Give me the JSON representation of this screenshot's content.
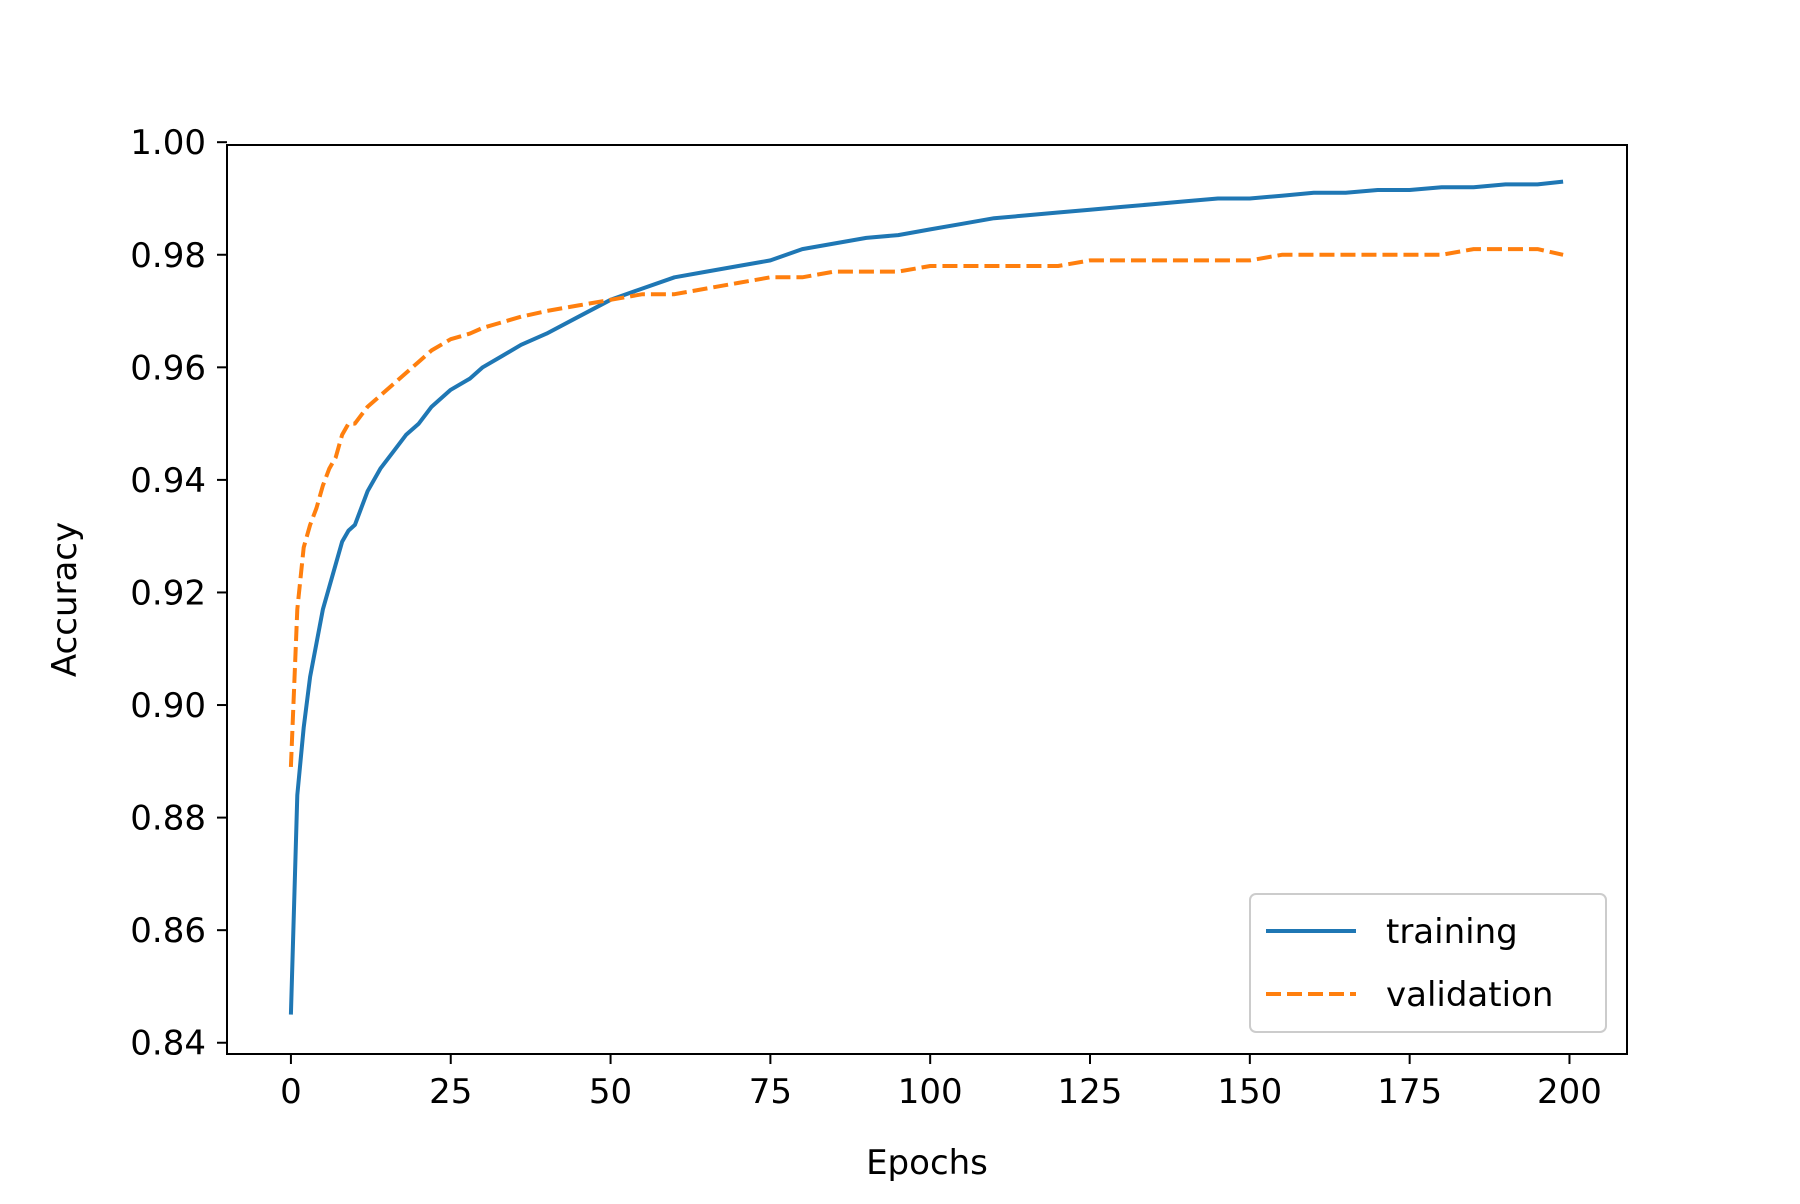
{
  "chart_data": {
    "type": "line",
    "title": "",
    "xlabel": "Epochs",
    "ylabel": "Accuracy",
    "xlim": [
      -10,
      209
    ],
    "ylim": [
      0.838,
      0.9995
    ],
    "xticks": [
      0,
      25,
      50,
      75,
      100,
      125,
      150,
      175,
      200
    ],
    "xtick_labels": [
      "0",
      "25",
      "50",
      "75",
      "100",
      "125",
      "150",
      "175",
      "200"
    ],
    "yticks": [
      0.84,
      0.86,
      0.88,
      0.9,
      0.92,
      0.94,
      0.96,
      0.98,
      1.0
    ],
    "ytick_labels": [
      "0.84",
      "0.86",
      "0.88",
      "0.90",
      "0.92",
      "0.94",
      "0.96",
      "0.98",
      "1.00"
    ],
    "grid": false,
    "legend_position": "lower-right",
    "series": [
      {
        "name": "training",
        "color": "#1f77b4",
        "style": "solid",
        "x": [
          0,
          1,
          2,
          3,
          4,
          5,
          6,
          7,
          8,
          9,
          10,
          12,
          14,
          16,
          18,
          20,
          22,
          25,
          28,
          30,
          33,
          36,
          40,
          45,
          50,
          55,
          60,
          65,
          70,
          75,
          80,
          85,
          90,
          95,
          100,
          105,
          110,
          115,
          120,
          125,
          130,
          135,
          140,
          145,
          150,
          155,
          160,
          165,
          170,
          175,
          180,
          185,
          190,
          195,
          199
        ],
        "y": [
          0.845,
          0.884,
          0.896,
          0.905,
          0.911,
          0.917,
          0.921,
          0.925,
          0.929,
          0.931,
          0.932,
          0.938,
          0.942,
          0.945,
          0.948,
          0.95,
          0.953,
          0.956,
          0.958,
          0.96,
          0.962,
          0.964,
          0.966,
          0.969,
          0.972,
          0.974,
          0.976,
          0.977,
          0.978,
          0.979,
          0.981,
          0.982,
          0.983,
          0.9835,
          0.9845,
          0.9855,
          0.9865,
          0.987,
          0.9875,
          0.988,
          0.9885,
          0.989,
          0.9895,
          0.99,
          0.99,
          0.9905,
          0.991,
          0.991,
          0.9915,
          0.9915,
          0.992,
          0.992,
          0.9925,
          0.9925,
          0.993
        ]
      },
      {
        "name": "validation",
        "color": "#ff7f0e",
        "style": "dashed",
        "x": [
          0,
          1,
          2,
          3,
          4,
          5,
          6,
          7,
          8,
          9,
          10,
          12,
          14,
          16,
          18,
          20,
          22,
          25,
          28,
          30,
          33,
          36,
          40,
          45,
          50,
          55,
          60,
          65,
          70,
          75,
          80,
          85,
          90,
          95,
          100,
          105,
          110,
          115,
          120,
          125,
          130,
          135,
          140,
          145,
          150,
          155,
          160,
          165,
          170,
          175,
          180,
          185,
          190,
          195,
          199
        ],
        "y": [
          0.889,
          0.917,
          0.928,
          0.932,
          0.935,
          0.939,
          0.942,
          0.944,
          0.948,
          0.95,
          0.95,
          0.953,
          0.955,
          0.957,
          0.959,
          0.961,
          0.963,
          0.965,
          0.966,
          0.967,
          0.968,
          0.969,
          0.97,
          0.971,
          0.972,
          0.973,
          0.973,
          0.974,
          0.975,
          0.976,
          0.976,
          0.977,
          0.977,
          0.977,
          0.978,
          0.978,
          0.978,
          0.978,
          0.978,
          0.979,
          0.979,
          0.979,
          0.979,
          0.979,
          0.979,
          0.98,
          0.98,
          0.98,
          0.98,
          0.98,
          0.98,
          0.981,
          0.981,
          0.981,
          0.98
        ]
      }
    ]
  }
}
